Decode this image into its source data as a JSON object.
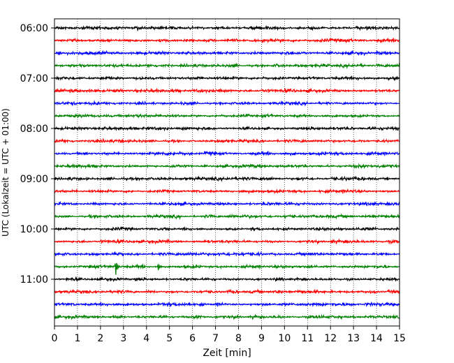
{
  "chart_data": {
    "type": "line",
    "xlabel": "Zeit  [min]",
    "ylabel": "UTC (Lokalzeit = UTC + 01:00)",
    "xlim": [
      0,
      15
    ],
    "x_ticks": [
      "0",
      "1",
      "2",
      "3",
      "4",
      "5",
      "6",
      "7",
      "8",
      "9",
      "10",
      "11",
      "12",
      "13",
      "14",
      "15"
    ],
    "y_ticks": [
      "06:00",
      "07:00",
      "08:00",
      "09:00",
      "10:00",
      "11:00"
    ],
    "trace_start": "06:00",
    "trace_interval_minutes": 15,
    "trace_count": 24,
    "colors_cycle": [
      "#000000",
      "#ff0000",
      "#0000ff",
      "#008000"
    ],
    "grid": "vertical-dotted",
    "events": [
      {
        "trace": "10:45",
        "minute": 2.65,
        "amplitude": "large"
      },
      {
        "trace": "10:45",
        "minute": 4.5,
        "amplitude": "medium"
      }
    ]
  }
}
